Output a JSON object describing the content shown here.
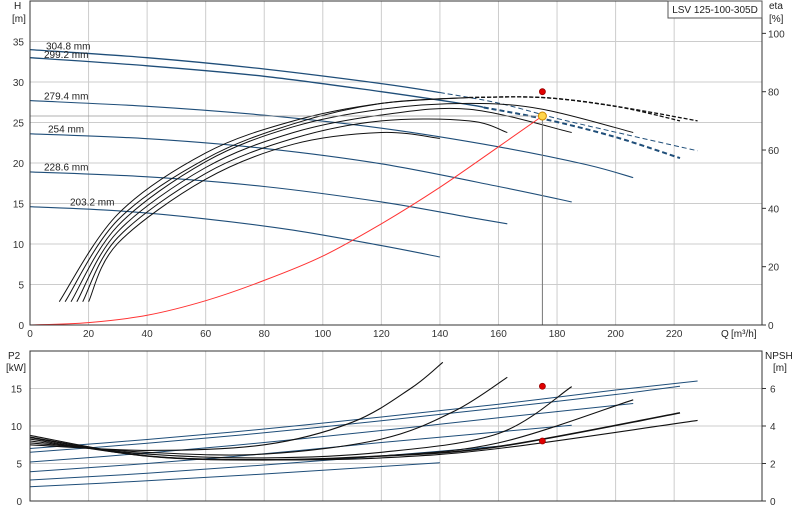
{
  "chart_data": {
    "model": "LSV 125-100-305D",
    "colors": {
      "impeller": "#1f4e79",
      "efficiency": "#111111",
      "system": "#ff3333",
      "grid": "#cccccc",
      "op_point": "#ffd54a",
      "marker": "#e00000"
    },
    "top": {
      "type": "line",
      "y_label": "H",
      "y_unit": "[m]",
      "y2_label": "eta",
      "y2_unit": "[%]",
      "x_label": "Q",
      "x_unit": "[m³/h]",
      "xlim": [
        0,
        250
      ],
      "ylim": [
        0,
        40
      ],
      "y2lim": [
        0,
        111.1
      ],
      "x_ticks": [
        0,
        20,
        40,
        60,
        80,
        100,
        120,
        140,
        160,
        180,
        200,
        220
      ],
      "y_ticks": [
        0,
        5,
        10,
        15,
        20,
        25,
        30,
        35
      ],
      "y2_ticks": [
        0,
        20,
        40,
        60,
        80,
        100
      ],
      "grid": true,
      "head_curves": [
        {
          "name": "304.8 mm",
          "x": [
            0,
            40,
            80,
            120,
            140,
            160,
            180,
            200,
            228
          ],
          "y": [
            34.0,
            33.0,
            31.6,
            29.8,
            28.7,
            27.4,
            25.5,
            23.8,
            21.5
          ],
          "solid_until": 140
        },
        {
          "name": "299.2 mm",
          "x": [
            0,
            40,
            80,
            120,
            150,
            176,
            200,
            222
          ],
          "y": [
            33.0,
            32.0,
            30.7,
            28.8,
            27.2,
            25.4,
            23.2,
            20.6
          ],
          "solid_until": 155
        },
        {
          "name": "279.4 mm",
          "x": [
            0,
            40,
            80,
            120,
            160,
            190,
            206
          ],
          "y": [
            27.7,
            27.0,
            25.9,
            24.3,
            22.0,
            19.8,
            18.2
          ]
        },
        {
          "name": "254 mm",
          "x": [
            0,
            40,
            80,
            120,
            160,
            185
          ],
          "y": [
            23.6,
            23.0,
            21.8,
            19.9,
            17.1,
            15.2
          ]
        },
        {
          "name": "228.6 mm",
          "x": [
            0,
            40,
            80,
            120,
            150,
            163
          ],
          "y": [
            18.9,
            18.3,
            17.1,
            15.2,
            13.3,
            12.5
          ]
        },
        {
          "name": "203.2 mm",
          "x": [
            0,
            30,
            60,
            90,
            120,
            140
          ],
          "y": [
            14.6,
            14.1,
            13.1,
            11.7,
            9.8,
            8.4
          ]
        }
      ],
      "efficiency_curves": [
        {
          "x": [
            10,
            30,
            60,
            90,
            120,
            150,
            175,
            200,
            228
          ],
          "eta": [
            8,
            38,
            59,
            70,
            76,
            78,
            78,
            75,
            70
          ],
          "solid_until": 150
        },
        {
          "x": [
            12,
            30,
            60,
            90,
            120,
            150,
            175,
            200,
            222
          ],
          "eta": [
            8,
            36,
            57,
            69,
            76,
            78,
            78,
            75,
            70
          ],
          "solid_until": 150
        },
        {
          "x": [
            14,
            30,
            60,
            90,
            120,
            150,
            175,
            206
          ],
          "eta": [
            8,
            34,
            56,
            68,
            74,
            76,
            74,
            66
          ]
        },
        {
          "x": [
            16,
            30,
            60,
            90,
            120,
            150,
            185
          ],
          "eta": [
            8,
            32,
            54,
            66,
            72,
            74,
            66
          ]
        },
        {
          "x": [
            18,
            30,
            60,
            90,
            120,
            150,
            163
          ],
          "eta": [
            8,
            30,
            52,
            64,
            70,
            70,
            66
          ]
        },
        {
          "x": [
            20,
            30,
            60,
            90,
            120,
            140
          ],
          "eta": [
            8,
            28,
            50,
            62,
            66,
            64
          ]
        }
      ],
      "system_curve": {
        "x": [
          0,
          20,
          40,
          60,
          80,
          100,
          120,
          140,
          160,
          175
        ],
        "y": [
          0,
          0.3,
          1.2,
          3.0,
          5.5,
          8.5,
          12.5,
          17.0,
          22.0,
          25.8
        ]
      },
      "operating_point": {
        "q": 175,
        "h": 25.8,
        "eta": 80
      }
    },
    "bottom": {
      "type": "line",
      "y_label": "P2",
      "y_unit": "[kW]",
      "y2_label": "NPSH",
      "y2_unit": "[m]",
      "xlim": [
        0,
        250
      ],
      "ylim": [
        0,
        20
      ],
      "y2lim": [
        0,
        8
      ],
      "y_ticks": [
        0,
        5,
        10,
        15
      ],
      "y2_ticks": [
        0,
        2,
        4,
        6
      ],
      "grid": true,
      "power_curves": [
        {
          "x": [
            0,
            40,
            80,
            120,
            160,
            200,
            228
          ],
          "p": [
            7.0,
            8.2,
            9.6,
            11.2,
            12.9,
            14.8,
            16.0
          ]
        },
        {
          "x": [
            0,
            40,
            80,
            120,
            160,
            200,
            222
          ],
          "p": [
            6.5,
            7.7,
            9.1,
            10.7,
            12.4,
            14.2,
            15.3
          ]
        },
        {
          "x": [
            0,
            40,
            80,
            120,
            160,
            206
          ],
          "p": [
            5.2,
            6.4,
            7.8,
            9.4,
            11.1,
            13.0
          ]
        },
        {
          "x": [
            0,
            40,
            80,
            120,
            185
          ],
          "p": [
            3.9,
            5.0,
            6.3,
            7.8,
            10.1
          ]
        },
        {
          "x": [
            0,
            40,
            80,
            120,
            163
          ],
          "p": [
            2.8,
            3.7,
            4.8,
            6.0,
            7.4
          ]
        },
        {
          "x": [
            0,
            40,
            80,
            120,
            140
          ],
          "p": [
            1.9,
            2.7,
            3.6,
            4.6,
            5.1
          ]
        }
      ],
      "npsh_curves": [
        {
          "x": [
            0,
            40,
            80,
            110,
            130,
            141
          ],
          "n": [
            3.0,
            2.7,
            3.0,
            4.2,
            6.0,
            7.4
          ]
        },
        {
          "x": [
            0,
            40,
            80,
            120,
            145,
            163
          ],
          "n": [
            3.1,
            2.6,
            2.5,
            3.3,
            4.8,
            6.6
          ]
        },
        {
          "x": [
            0,
            40,
            80,
            120,
            160,
            185
          ],
          "n": [
            3.2,
            2.5,
            2.3,
            2.6,
            3.6,
            6.1
          ]
        },
        {
          "x": [
            0,
            40,
            80,
            120,
            160,
            206
          ],
          "n": [
            3.3,
            2.4,
            2.2,
            2.4,
            3.1,
            5.4
          ]
        },
        {
          "x": [
            0,
            40,
            80,
            120,
            160,
            222
          ],
          "n": [
            3.4,
            2.4,
            2.2,
            2.4,
            2.9,
            4.7
          ]
        },
        {
          "x": [
            0,
            40,
            80,
            120,
            160,
            228
          ],
          "n": [
            3.5,
            2.4,
            2.2,
            2.3,
            2.8,
            4.3
          ]
        }
      ],
      "operating_point_p2": {
        "q": 175,
        "p": 15.3
      },
      "operating_point_npsh": {
        "q": 175,
        "n": 3.2
      }
    }
  }
}
